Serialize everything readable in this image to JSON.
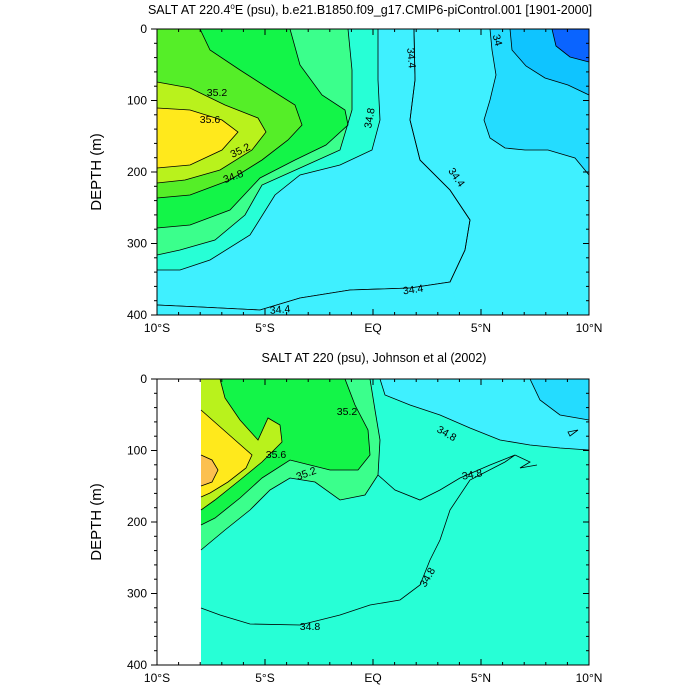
{
  "colors": {
    "lev_34_0": "#0a64ff",
    "lev_34_2": "#0fc4ff",
    "lev_34_4": "#24dcff",
    "lev_34_6": "#3ff0ff",
    "lev_34_8": "#27ffd6",
    "lev_35_0": "#3bff8c",
    "lev_35_2": "#13f548",
    "lev_35_4": "#55ee28",
    "lev_35_6": "#b9f21c",
    "lev_35_8": "#ffe91c",
    "lev_36_0": "#fcc050"
  },
  "chart_data": [
    {
      "type": "contour",
      "title": "SALT AT 220.4°E (psu), b.e21.B1850.f09_g17.CMIP6-piControl.001 [1901-2000]",
      "title_parts": {
        "pre": "SALT AT 220.4",
        "deg": "o",
        "post": "E (psu), b.e21.B1850.f09_g17.CMIP6-piControl.001 [1901-2000]"
      },
      "ylabel": "DEPTH (m)",
      "xlim": [
        -10,
        10
      ],
      "ylim": [
        400,
        0
      ],
      "x_ticks": [
        "10°S",
        "5°S",
        "EQ",
        "5°N",
        "10°N"
      ],
      "x_tick_values": [
        -10,
        -5,
        0,
        5,
        10
      ],
      "y_ticks": [
        "0",
        "100",
        "200",
        "300",
        "400"
      ],
      "contour_labels": [
        "35.2",
        "35.6",
        "35.2",
        "34.8",
        "34.8",
        "34.4",
        "34",
        "34.4",
        "34.4",
        "34.4"
      ],
      "levels": [
        34.0,
        34.2,
        34.4,
        34.6,
        34.8,
        35.0,
        35.2,
        35.4,
        35.6,
        35.8
      ],
      "regions": [
        {
          "level": 34.4,
          "label": "34.4 (background)"
        },
        {
          "level": 34.6,
          "label": "34.6"
        },
        {
          "level": 34.8,
          "label": "34.8"
        },
        {
          "level": 35.0,
          "label": "35.0"
        },
        {
          "level": 35.2,
          "label": "35.2"
        },
        {
          "level": 35.4,
          "label": "35.4"
        },
        {
          "level": 35.6,
          "label": "35.6"
        },
        {
          "level": 34.2,
          "label": "34.2"
        },
        {
          "level": 34.0,
          "label": "34.0"
        }
      ]
    },
    {
      "type": "contour",
      "title": "SALT AT 220 (psu), Johnson et al (2002)",
      "ylabel": "DEPTH (m)",
      "xlim": [
        -10,
        10
      ],
      "ylim": [
        400,
        0
      ],
      "x_ticks": [
        "10°S",
        "5°S",
        "EQ",
        "5°N",
        "10°N"
      ],
      "x_tick_values": [
        -10,
        -5,
        0,
        5,
        10
      ],
      "y_ticks": [
        "0",
        "100",
        "200",
        "300",
        "400"
      ],
      "data_coverage_x": [
        -8,
        10
      ],
      "contour_labels": [
        "35.2",
        "35.6",
        "35.2",
        "34.8",
        "34.8",
        "34.8",
        "34.8"
      ],
      "levels": [
        34.6,
        34.8,
        35.0,
        35.2,
        35.4,
        35.6,
        35.8
      ],
      "regions": [
        {
          "level": 34.8,
          "label": "34.8 (background)"
        },
        {
          "level": 35.0,
          "label": "35.0"
        },
        {
          "level": 35.2,
          "label": "35.2"
        },
        {
          "level": 35.4,
          "label": "35.4"
        },
        {
          "level": 35.6,
          "label": "35.6"
        },
        {
          "level": 35.8,
          "label": "35.8"
        },
        {
          "level": 34.6,
          "label": "34.6"
        }
      ]
    }
  ]
}
